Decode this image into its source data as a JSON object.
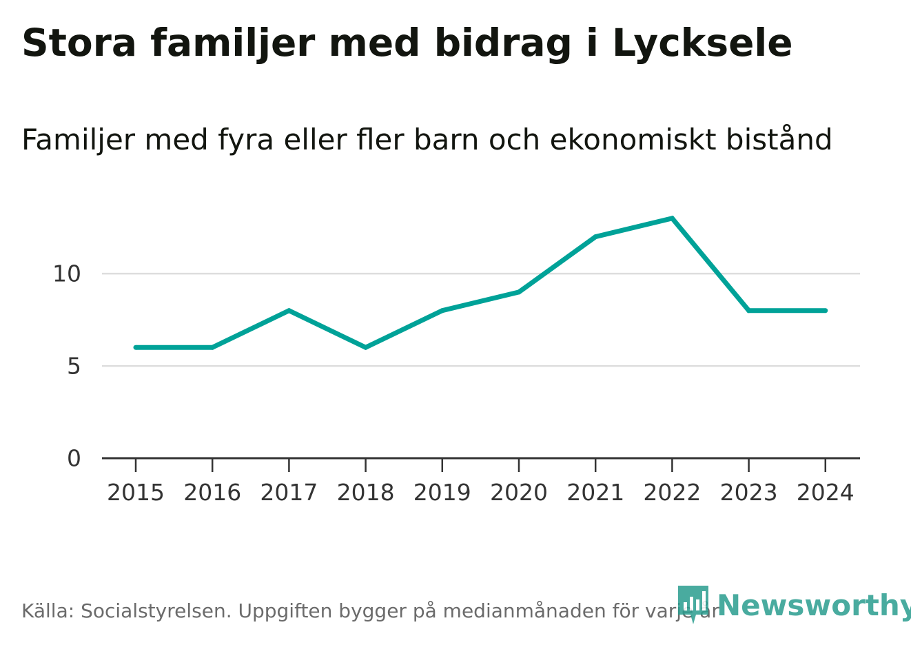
{
  "title": "Stora familjer med bidrag i Lycksele",
  "subtitle": "Familjer med fyra eller fler barn och ekonomiskt bistånd",
  "source": "Källa: Socialstyrelsen. Uppgiften bygger på medianmånaden för varje år",
  "brand": {
    "name": "Newsworthy",
    "color": "#2a9d8f"
  },
  "chart_data": {
    "type": "line",
    "title": "Stora familjer med bidrag i Lycksele",
    "subtitle": "Familjer med fyra eller fler barn och ekonomiskt bistånd",
    "xlabel": "",
    "ylabel": "",
    "x": [
      "2015",
      "2016",
      "2017",
      "2018",
      "2019",
      "2020",
      "2021",
      "2022",
      "2023",
      "2024"
    ],
    "series": [
      {
        "name": "Familjer med fyra eller fler barn och ekonomiskt bistånd",
        "values": [
          6,
          6,
          8,
          6,
          8,
          9,
          12,
          13,
          8,
          8
        ],
        "color": "#00a298"
      }
    ],
    "yticks": [
      0,
      5,
      10
    ],
    "ylim": [
      0,
      14
    ],
    "grid": true,
    "legend": "none"
  }
}
